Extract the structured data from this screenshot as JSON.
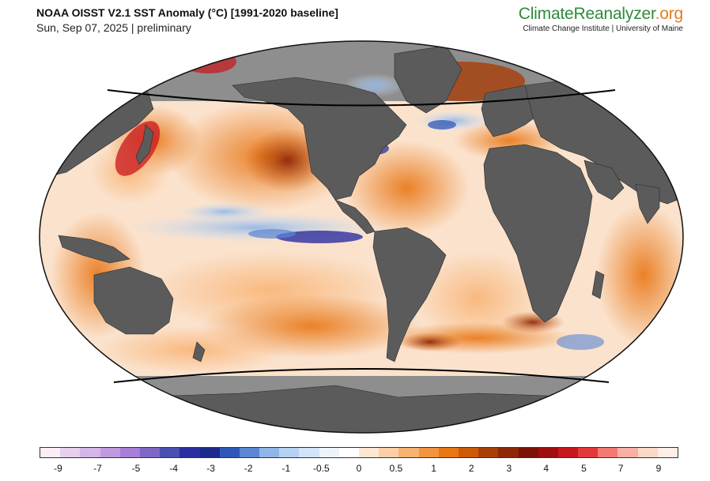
{
  "header": {
    "title": "NOAA OISST V2.1 SST Anomaly (°C) [1991-2020 baseline]",
    "subtitle": "Sun, Sep 07, 2025 | preliminary"
  },
  "brand": {
    "name_part1": "Climate",
    "name_part2": "Reanalyzer",
    "name_part3": ".org",
    "tagline": "Climate Change Institute | University of Maine",
    "color_primary": "#2f8a3a",
    "color_accent": "#e07f1f"
  },
  "map": {
    "projection": "robinson-like ellipse",
    "land_color": "#5b5b5b",
    "sea_ice_color": "#9a9a9a",
    "ocean_base_color": "#fbe9dc"
  },
  "colorbar": {
    "colors": [
      "#fdeef5",
      "#e7cfee",
      "#d4b6e8",
      "#c09ae0",
      "#a87ed6",
      "#7f66c4",
      "#4b4fb0",
      "#2c2ea0",
      "#1c2a8c",
      "#2d58b8",
      "#5a86d2",
      "#8fb6e8",
      "#b5d2f2",
      "#d2e4f7",
      "#eef4fb",
      "#ffffff",
      "#fde7d2",
      "#fccfa6",
      "#f8b271",
      "#f29440",
      "#e87615",
      "#cc5a06",
      "#a93f08",
      "#8e2708",
      "#7c1105",
      "#a00d10",
      "#c8161d",
      "#e3393b",
      "#f27a72",
      "#f8b0a2",
      "#fcd8c6",
      "#fdeee6"
    ],
    "tick_labels": [
      "-9",
      "-7",
      "-5",
      "-4",
      "-3",
      "-2",
      "-1",
      "-0.5",
      "0",
      "0.5",
      "1",
      "2",
      "3",
      "4",
      "5",
      "7",
      "9"
    ]
  }
}
